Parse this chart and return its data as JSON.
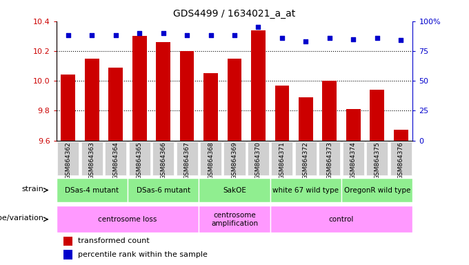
{
  "title": "GDS4499 / 1634021_a_at",
  "samples": [
    "GSM864362",
    "GSM864363",
    "GSM864364",
    "GSM864365",
    "GSM864366",
    "GSM864367",
    "GSM864368",
    "GSM864369",
    "GSM864370",
    "GSM864371",
    "GSM864372",
    "GSM864373",
    "GSM864374",
    "GSM864375",
    "GSM864376"
  ],
  "bar_values": [
    10.04,
    10.15,
    10.09,
    10.3,
    10.26,
    10.2,
    10.05,
    10.15,
    10.34,
    9.97,
    9.89,
    10.0,
    9.81,
    9.94,
    9.67
  ],
  "percentile_values": [
    88,
    88,
    88,
    90,
    90,
    88,
    88,
    88,
    95,
    86,
    83,
    86,
    85,
    86,
    84
  ],
  "ymin": 9.6,
  "ymax": 10.4,
  "bar_color": "#cc0000",
  "percentile_color": "#0000cc",
  "right_axis_ticks": [
    0,
    25,
    50,
    75,
    100
  ],
  "grid_values": [
    9.8,
    10.0,
    10.2
  ],
  "strain_groups": [
    {
      "label": "DSas-4 mutant",
      "start": 0,
      "end": 2
    },
    {
      "label": "DSas-6 mutant",
      "start": 3,
      "end": 5
    },
    {
      "label": "SakOE",
      "start": 6,
      "end": 8
    },
    {
      "label": "white 67 wild type",
      "start": 9,
      "end": 11
    },
    {
      "label": "OregonR wild type",
      "start": 12,
      "end": 14
    }
  ],
  "genotype_groups": [
    {
      "label": "centrosome loss",
      "start": 0,
      "end": 5
    },
    {
      "label": "centrosome\namplification",
      "start": 6,
      "end": 8
    },
    {
      "label": "control",
      "start": 9,
      "end": 14
    }
  ],
  "strain_color": "#90ee90",
  "genotype_color": "#ff99ff",
  "xtick_bg": "#d0d0d0",
  "legend_items": [
    {
      "color": "#cc0000",
      "label": "transformed count"
    },
    {
      "color": "#0000cc",
      "label": "percentile rank within the sample"
    }
  ],
  "strain_label": "strain",
  "genotype_label": "genotype/variation",
  "figsize": [
    6.8,
    3.84
  ],
  "dpi": 100
}
